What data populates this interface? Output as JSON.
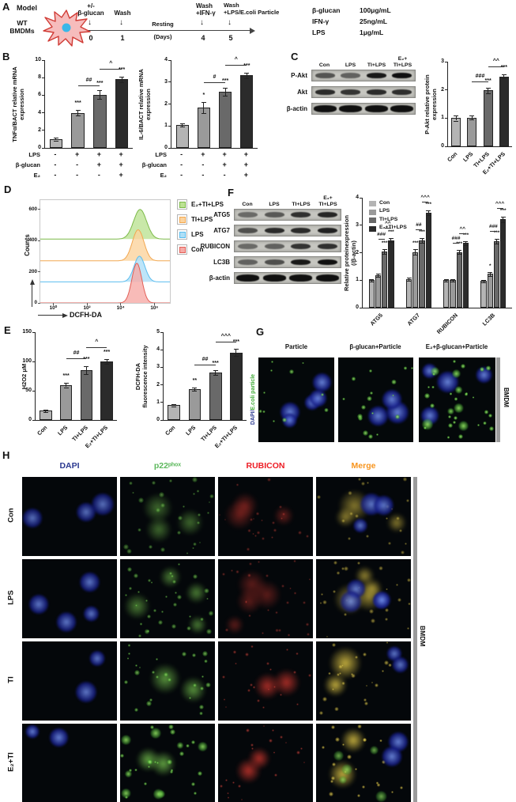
{
  "panels": {
    "A": "A",
    "B": "B",
    "C": "C",
    "D": "D",
    "E": "E",
    "F": "F",
    "G": "G",
    "H": "H"
  },
  "panelA": {
    "model_label": "Model",
    "cell_line1": "WT",
    "cell_line2": "BMDMs",
    "events": [
      {
        "top": "+/-",
        "label": "β-glucan",
        "day": "0"
      },
      {
        "top": "",
        "label": "Wash",
        "day": "1"
      },
      {
        "top": "Wash",
        "label": "+IFN-γ",
        "day": "4"
      },
      {
        "top": "Wash",
        "label": "+LPS/E.coli Particle",
        "day": "5"
      }
    ],
    "resting": "Resting",
    "days": "(Days)",
    "doses": [
      {
        "name": "β-glucan",
        "value": "100μg/mL"
      },
      {
        "name": "IFN-γ",
        "value": "25ng/mL"
      },
      {
        "name": "LPS",
        "value": "1μg/mL"
      }
    ]
  },
  "chart_data": {
    "bar_colors": [
      "#b4b4b4",
      "#9a9a9a",
      "#696969",
      "#2b2b2b"
    ],
    "b1": {
      "type": "bar",
      "ylabel": [
        "TNFα/BACT relative mRNA",
        "expression"
      ],
      "ylim": [
        0,
        10
      ],
      "yticks": [
        0,
        2,
        4,
        6,
        8,
        10
      ],
      "values": [
        1.0,
        4.0,
        6.05,
        7.8
      ],
      "errors": [
        0.15,
        0.3,
        0.5,
        0.3
      ],
      "sig": [
        "",
        "***",
        "***",
        "***"
      ],
      "brackets": [
        {
          "from": 1,
          "to": 2,
          "label": "##",
          "y": 7.1
        },
        {
          "from": 2,
          "to": 3,
          "label": "^",
          "y": 9.0
        }
      ],
      "matrix": [
        {
          "label": "LPS",
          "signs": [
            "-",
            "+",
            "+",
            "+"
          ]
        },
        {
          "label": "β-glucan",
          "signs": [
            "-",
            "-",
            "+",
            "+"
          ]
        },
        {
          "label": "E₂",
          "signs": [
            "-",
            "-",
            "-",
            "+"
          ]
        }
      ]
    },
    "b2": {
      "type": "bar",
      "ylabel": [
        "IL-6/BACT relative mRNA",
        "expression"
      ],
      "ylim": [
        0,
        4
      ],
      "yticks": [
        0,
        1,
        2,
        3,
        4
      ],
      "values": [
        1.05,
        1.85,
        2.55,
        3.3
      ],
      "errors": [
        0.07,
        0.25,
        0.18,
        0.12
      ],
      "sig": [
        "",
        "*",
        "***",
        "***"
      ],
      "brackets": [
        {
          "from": 1,
          "to": 2,
          "label": "#",
          "y": 3.0
        },
        {
          "from": 2,
          "to": 3,
          "label": "^",
          "y": 3.8
        }
      ],
      "matrix": [
        {
          "label": "LPS",
          "signs": [
            "-",
            "+",
            "+",
            "+"
          ]
        },
        {
          "label": "β-glucan",
          "signs": [
            "-",
            "-",
            "+",
            "+"
          ]
        },
        {
          "label": "E₂",
          "signs": [
            "-",
            "-",
            "-",
            "+"
          ]
        }
      ]
    },
    "c": {
      "type": "bar",
      "ylabel": [
        "P-Akt relative protein",
        "expression"
      ],
      "ylim": [
        0,
        3
      ],
      "yticks": [
        0,
        1,
        2,
        3
      ],
      "values": [
        1.0,
        1.02,
        1.98,
        2.47
      ],
      "errors": [
        0.09,
        0.07,
        0.09,
        0.07
      ],
      "sig": [
        "",
        "",
        "***",
        "***"
      ],
      "brackets": [
        {
          "from": 1,
          "to": 2,
          "label": "###",
          "y": 2.3
        },
        {
          "from": 2,
          "to": 3,
          "label": "^^",
          "y": 2.82
        }
      ],
      "xlabels": [
        "Con",
        "LPS",
        "TI+LPS",
        "E₂+TI+LPS"
      ]
    },
    "e1": {
      "type": "bar",
      "ylabel": [
        "H2O2 μM"
      ],
      "ylim": [
        0,
        150
      ],
      "yticks": [
        0,
        50,
        100,
        150
      ],
      "values": [
        16,
        60,
        85,
        100
      ],
      "errors": [
        2,
        4,
        7,
        4
      ],
      "sig": [
        "",
        "***",
        "***",
        "***"
      ],
      "brackets": [
        {
          "from": 1,
          "to": 2,
          "label": "##",
          "y": 105
        },
        {
          "from": 2,
          "to": 3,
          "label": "^",
          "y": 124
        }
      ],
      "xlabels": [
        "Con",
        "LPS",
        "TI+LPS",
        "E₂+TI+LPS"
      ]
    },
    "e2": {
      "type": "bar",
      "ylabel": [
        "DCFH-DA",
        "fluorescence intensity"
      ],
      "ylim": [
        0,
        5
      ],
      "yticks": [
        0,
        1,
        2,
        3,
        4,
        5
      ],
      "values": [
        0.85,
        1.75,
        2.7,
        3.85
      ],
      "errors": [
        0.06,
        0.08,
        0.12,
        0.2
      ],
      "sig": [
        "",
        "**",
        "***",
        "***"
      ],
      "brackets": [
        {
          "from": 1,
          "to": 2,
          "label": "##",
          "y": 3.15
        },
        {
          "from": 2,
          "to": 3,
          "label": "^^^",
          "y": 4.45
        }
      ],
      "xlabels": [
        "Con",
        "LPS",
        "TI+LPS",
        "E₂+TI+LPS"
      ]
    },
    "f": {
      "type": "grouped-bar",
      "ylabel": [
        "Relative proteinexpression",
        "(/β-actin)"
      ],
      "ylim": [
        0,
        4
      ],
      "yticks": [
        0,
        1,
        2,
        3,
        4
      ],
      "groups": [
        {
          "name": "ATG5",
          "sig": [
            "",
            "",
            "***",
            "***"
          ],
          "brackets": [
            {
              "from": 1,
              "to": 2,
              "label": "###",
              "y": 2.5
            },
            {
              "from": 2,
              "to": 3,
              "label": "^^",
              "y": 2.92
            }
          ]
        },
        {
          "name": "ATG7",
          "sig": [
            "",
            "***",
            "***",
            "***"
          ],
          "brackets": [
            {
              "from": 1,
              "to": 2,
              "label": "##",
              "y": 2.85
            },
            {
              "from": 2,
              "to": 3,
              "label": "^^^",
              "y": 3.85
            }
          ]
        },
        {
          "name": "RUBICON",
          "sig": [
            "",
            "",
            "***",
            "***"
          ],
          "brackets": [
            {
              "from": 1,
              "to": 2,
              "label": "###",
              "y": 2.35
            },
            {
              "from": 2,
              "to": 3,
              "label": "^^",
              "y": 2.72
            }
          ]
        },
        {
          "name": "LC3B",
          "sig": [
            "",
            "*",
            "***",
            "***"
          ],
          "brackets": [
            {
              "from": 1,
              "to": 2,
              "label": "###",
              "y": 2.8
            },
            {
              "from": 2,
              "to": 3,
              "label": "^^^",
              "y": 3.62
            }
          ]
        }
      ],
      "series": [
        {
          "name": "Con",
          "values": [
            1.0,
            1.03,
            1.0,
            0.97
          ]
        },
        {
          "name": "LPS",
          "values": [
            1.17,
            2.03,
            1.0,
            1.23
          ]
        },
        {
          "name": "TI+LPS",
          "values": [
            2.05,
            2.45,
            2.03,
            2.42
          ]
        },
        {
          "name": "E₂+TI+LPS",
          "values": [
            2.45,
            3.45,
            2.35,
            3.22
          ]
        }
      ],
      "errors": [
        [
          0.05,
          0.06,
          0.05,
          0.05
        ],
        [
          0.06,
          0.09,
          0.05,
          0.07
        ],
        [
          0.08,
          0.08,
          0.08,
          0.09
        ],
        [
          0.07,
          0.08,
          0.08,
          0.1
        ]
      ]
    },
    "d_flow": {
      "type": "flow-histogram",
      "ylabel": "Counts",
      "xlabel": "DCFH-DA",
      "ymax": 660,
      "yticks": [
        0,
        200,
        400,
        600
      ],
      "xticks": [
        "10⁰",
        "10²",
        "10⁴",
        "10⁶"
      ],
      "xtick_pos": [
        0.1,
        0.36,
        0.62,
        0.88
      ],
      "series": [
        {
          "name": "E₂+TI+LPS",
          "base": 410,
          "peak": 190,
          "center": 0.77,
          "sigma": 0.05,
          "fill": "#bce293",
          "line": "#7cba49"
        },
        {
          "name": "TI+LPS",
          "base": 270,
          "peak": 200,
          "center": 0.755,
          "sigma": 0.045,
          "fill": "#fbd39e",
          "line": "#f2a750"
        },
        {
          "name": "LPS",
          "base": 135,
          "peak": 165,
          "center": 0.765,
          "sigma": 0.042,
          "fill": "#aedff7",
          "line": "#5bbdee"
        },
        {
          "name": "Con",
          "base": 0,
          "peak": 255,
          "center": 0.745,
          "sigma": 0.038,
          "fill": "#f6aaa6",
          "line": "#e25f57"
        }
      ],
      "legend": [
        {
          "label": "E₂+TI+LPS",
          "fill": "#bce293",
          "line": "#7cba49"
        },
        {
          "label": "TI+LPS",
          "fill": "#fbd39e",
          "line": "#f2a750"
        },
        {
          "label": "LPS",
          "fill": "#aedff7",
          "line": "#5bbdee"
        },
        {
          "label": "Con",
          "fill": "#f6aaa6",
          "line": "#e25f57"
        }
      ]
    }
  },
  "blots": {
    "c": {
      "lanes_top": [
        "",
        "",
        "",
        "E₂+"
      ],
      "lanes": [
        "Con",
        "LPS",
        "TI+LPS",
        "TI+LPS"
      ],
      "rows": [
        {
          "label": "P-Akt",
          "bands": [
            0.62,
            0.55,
            0.95,
            1.0
          ]
        },
        {
          "label": "Akt",
          "bands": [
            0.85,
            0.8,
            0.85,
            0.83
          ]
        },
        {
          "label": "β-actin",
          "bands": [
            1,
            1,
            1,
            1
          ]
        }
      ]
    },
    "f": {
      "lanes_top": [
        "",
        "",
        "",
        "E₂+"
      ],
      "lanes": [
        "Con",
        "LPS",
        "TI+LPS",
        "TI+LPS"
      ],
      "rows": [
        {
          "label": "ATG5",
          "bands": [
            0.5,
            0.6,
            0.82,
            0.88
          ]
        },
        {
          "label": "ATG7",
          "bands": [
            0.65,
            0.85,
            0.85,
            0.9
          ]
        },
        {
          "label": "RUBICON",
          "bands": [
            0.5,
            0.55,
            0.8,
            0.82
          ]
        },
        {
          "label": "LC3B",
          "bands": [
            0.55,
            0.65,
            0.95,
            1.0
          ]
        },
        {
          "label": "β-actin",
          "bands": [
            1,
            1,
            1,
            1
          ]
        }
      ]
    }
  },
  "panelG": {
    "titles": [
      "Particle",
      "β-glucan+Particle",
      "E₂+β-glucan+Particle"
    ],
    "side_label_blue": "DAPI/",
    "side_label_green": "E.coli particle",
    "side_blue_color": "#2b3990",
    "side_green_color": "#3faa35",
    "right_label": "BMDM"
  },
  "panelH": {
    "col_headers": [
      {
        "text": "DAPI",
        "color": "#2b3990"
      },
      {
        "text": "p22ᵖʰᵒˣ",
        "color": "#5cb85c"
      },
      {
        "text": "RUBICON",
        "color": "#ed1c24"
      },
      {
        "text": "Merge",
        "color": "#f7941d"
      }
    ],
    "row_labels": [
      "Con",
      "LPS",
      "TI",
      "E₂+TI"
    ],
    "right_label": "BMDM"
  },
  "micro": {
    "g": [
      {
        "seed": 101,
        "layers": [
          {
            "k": "nuc",
            "n": 5,
            "o": 0.92
          },
          {
            "k": "gdot",
            "n": 11,
            "o": 0.8
          }
        ]
      },
      {
        "seed": 102,
        "layers": [
          {
            "k": "nuc",
            "n": 3,
            "o": 0.92
          },
          {
            "k": "gdot",
            "n": 17,
            "o": 0.85
          }
        ]
      },
      {
        "seed": 103,
        "layers": [
          {
            "k": "nuc",
            "n": 4,
            "o": 0.92
          },
          {
            "k": "gblob",
            "n": 7,
            "o": 0.9
          },
          {
            "k": "gdot",
            "n": 26,
            "o": 0.9
          }
        ]
      }
    ],
    "h": [
      {
        "seed": 1,
        "layers": [
          {
            "k": "nuc",
            "n": 3,
            "o": 0.8
          }
        ]
      },
      {
        "seed": 2,
        "layers": [
          {
            "k": "gcell",
            "n": 3,
            "o": 0.6
          },
          {
            "k": "gdot",
            "n": 28,
            "o": 0.5
          }
        ]
      },
      {
        "seed": 3,
        "layers": [
          {
            "k": "rcell",
            "n": 3,
            "o": 0.55
          },
          {
            "k": "rdot",
            "n": 22,
            "o": 0.5
          }
        ]
      },
      {
        "seed": 4,
        "layers": [
          {
            "k": "ycell",
            "n": 3,
            "o": 0.65
          },
          {
            "k": "ydot",
            "n": 20,
            "o": 0.55
          },
          {
            "k": "nuc",
            "n": 3,
            "o": 0.85
          }
        ]
      },
      {
        "seed": 5,
        "layers": [
          {
            "k": "nuc",
            "n": 4,
            "o": 0.85
          }
        ]
      },
      {
        "seed": 6,
        "layers": [
          {
            "k": "gcell",
            "n": 4,
            "o": 0.72
          },
          {
            "k": "gdot",
            "n": 34,
            "o": 0.6
          }
        ]
      },
      {
        "seed": 7,
        "layers": [
          {
            "k": "rcell",
            "n": 4,
            "o": 0.5
          },
          {
            "k": "rdot",
            "n": 26,
            "o": 0.5
          }
        ]
      },
      {
        "seed": 8,
        "layers": [
          {
            "k": "ycell",
            "n": 4,
            "o": 0.72
          },
          {
            "k": "ydot",
            "n": 24,
            "o": 0.6
          },
          {
            "k": "nuc",
            "n": 4,
            "o": 0.85
          }
        ]
      },
      {
        "seed": 9,
        "layers": [
          {
            "k": "nuc",
            "n": 2,
            "o": 0.85
          }
        ]
      },
      {
        "seed": 10,
        "layers": [
          {
            "k": "gcell",
            "n": 2,
            "o": 0.85
          },
          {
            "k": "gdot",
            "n": 26,
            "o": 0.7
          }
        ]
      },
      {
        "seed": 11,
        "layers": [
          {
            "k": "rcell",
            "n": 2,
            "o": 0.9
          },
          {
            "k": "rdot",
            "n": 22,
            "o": 0.65
          }
        ]
      },
      {
        "seed": 12,
        "layers": [
          {
            "k": "ycell",
            "n": 2,
            "o": 0.95
          },
          {
            "k": "ydot",
            "n": 24,
            "o": 0.7
          },
          {
            "k": "nuc",
            "n": 2,
            "o": 0.85
          }
        ]
      },
      {
        "seed": 13,
        "layers": [
          {
            "k": "nuc",
            "n": 2,
            "o": 0.9
          }
        ]
      },
      {
        "seed": 14,
        "layers": [
          {
            "k": "gcell",
            "n": 2,
            "o": 0.95
          },
          {
            "k": "gblob",
            "n": 8,
            "o": 0.85
          },
          {
            "k": "gdot",
            "n": 22,
            "o": 0.8
          }
        ]
      },
      {
        "seed": 15,
        "layers": [
          {
            "k": "rcell",
            "n": 2,
            "o": 0.95
          },
          {
            "k": "rdot",
            "n": 20,
            "o": 0.7
          }
        ]
      },
      {
        "seed": 16,
        "layers": [
          {
            "k": "ycell",
            "n": 2,
            "o": 0.95
          },
          {
            "k": "ydot",
            "n": 22,
            "o": 0.8
          },
          {
            "k": "gblob",
            "n": 5,
            "o": 0.7
          },
          {
            "k": "nuc",
            "n": 2,
            "o": 0.9
          }
        ]
      }
    ]
  }
}
